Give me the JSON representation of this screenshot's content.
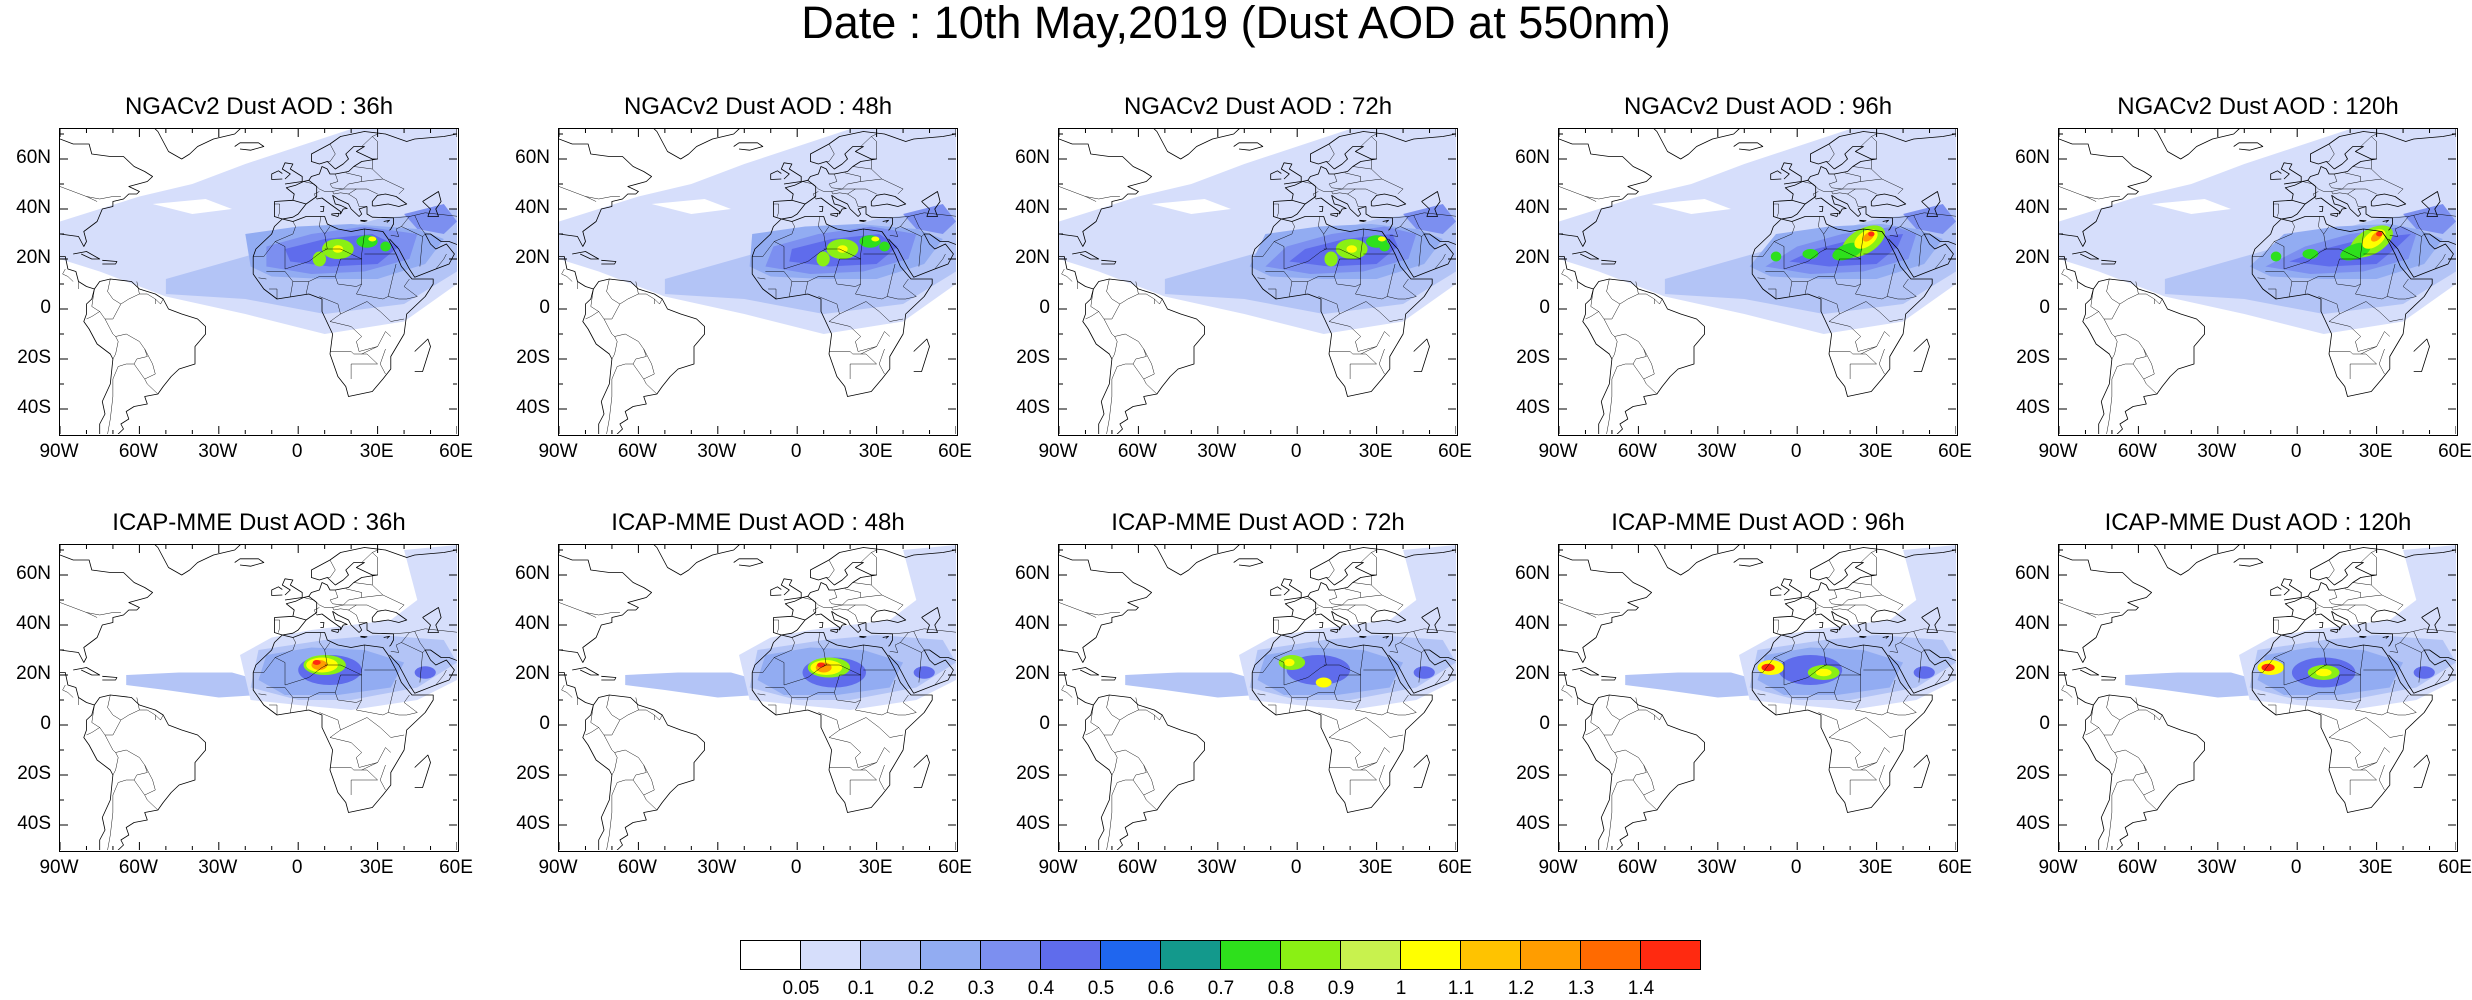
{
  "title": "Date : 10th May,2019 (Dust AOD at 550nm)",
  "lat_labels": [
    "60N",
    "40N",
    "20N",
    "0",
    "20S",
    "40S"
  ],
  "lat_values": [
    60,
    40,
    20,
    0,
    -20,
    -40
  ],
  "lon_labels": [
    "90W",
    "60W",
    "30W",
    "0",
    "30E",
    "60E"
  ],
  "lon_values": [
    -90,
    -60,
    -30,
    0,
    30,
    60
  ],
  "extent": {
    "lon": [
      -90,
      60
    ],
    "lat": [
      -50,
      72
    ]
  },
  "panels": [
    {
      "title": "NGACv2 Dust AOD : 36h",
      "model": "NGACv2",
      "lead": "36h",
      "peak_aod": 1.0
    },
    {
      "title": "NGACv2 Dust AOD : 48h",
      "model": "NGACv2",
      "lead": "48h",
      "peak_aod": 1.0
    },
    {
      "title": "NGACv2 Dust AOD : 72h",
      "model": "NGACv2",
      "lead": "72h",
      "peak_aod": 1.0
    },
    {
      "title": "NGACv2 Dust AOD : 96h",
      "model": "NGACv2",
      "lead": "96h",
      "peak_aod": 1.4
    },
    {
      "title": "NGACv2 Dust AOD : 120h",
      "model": "NGACv2",
      "lead": "120h",
      "peak_aod": 1.4
    },
    {
      "title": "ICAP-MME Dust AOD : 36h",
      "model": "ICAP-MME",
      "lead": "36h",
      "peak_aod": 1.3
    },
    {
      "title": "ICAP-MME Dust AOD : 48h",
      "model": "ICAP-MME",
      "lead": "48h",
      "peak_aod": 1.2
    },
    {
      "title": "ICAP-MME Dust AOD : 72h",
      "model": "ICAP-MME",
      "lead": "72h",
      "peak_aod": 1.0
    },
    {
      "title": "ICAP-MME Dust AOD : 96h",
      "model": "ICAP-MME",
      "lead": "96h",
      "peak_aod": 1.4
    },
    {
      "title": "ICAP-MME Dust AOD : 120h",
      "model": "ICAP-MME",
      "lead": "120h",
      "peak_aod": 1.4
    }
  ],
  "colorbar": {
    "labels": [
      "0.05",
      "0.1",
      "0.2",
      "0.3",
      "0.4",
      "0.5",
      "0.6",
      "0.7",
      "0.8",
      "0.9",
      "1",
      "1.1",
      "1.2",
      "1.3",
      "1.4"
    ],
    "colors": [
      "#ffffff",
      "#d6defb",
      "#b3c4f6",
      "#92acf2",
      "#7c8ff0",
      "#5f6cec",
      "#1f66ef",
      "#13998c",
      "#2ee01c",
      "#8af014",
      "#c8f24e",
      "#ffff00",
      "#ffc300",
      "#ff9d00",
      "#ff6a00",
      "#ff2a10"
    ]
  },
  "chart_data": {
    "type": "heatmap",
    "variable": "Dust AOD at 550nm",
    "date": "10th May,2019",
    "models": [
      "NGACv2",
      "ICAP-MME"
    ],
    "lead_times": [
      "36h",
      "48h",
      "72h",
      "96h",
      "120h"
    ],
    "levels": [
      0.05,
      0.1,
      0.2,
      0.3,
      0.4,
      0.5,
      0.6,
      0.7,
      0.8,
      0.9,
      1,
      1.1,
      1.2,
      1.3,
      1.4
    ]
  }
}
